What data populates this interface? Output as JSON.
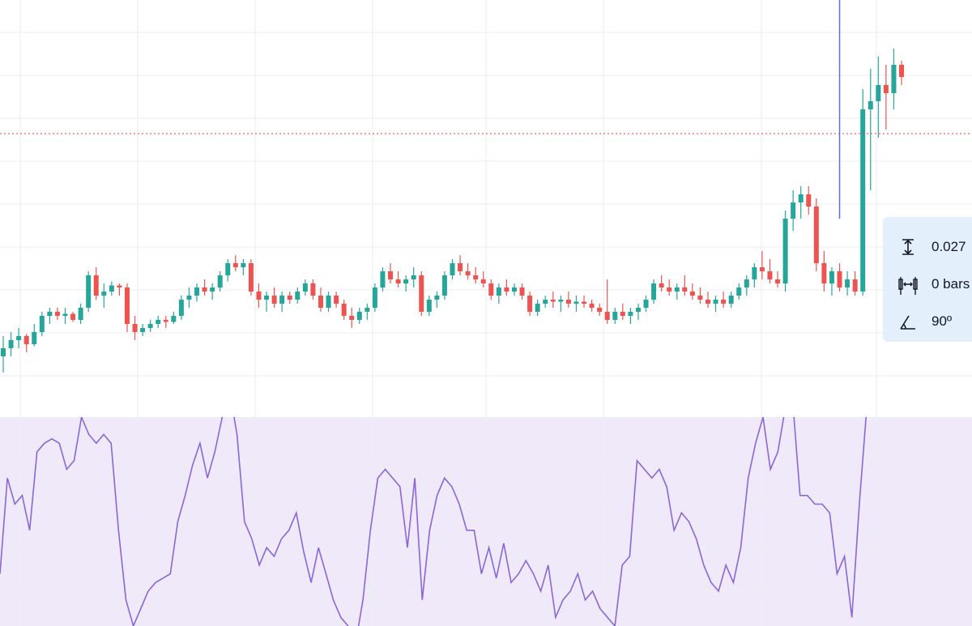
{
  "chart_data": [
    {
      "type": "candlestick",
      "title": "",
      "grid": true,
      "price_line": {
        "style": "dotted",
        "color": "#f23645"
      },
      "colors": {
        "up": "#26a69a",
        "down": "#ef5350",
        "background": "#ffffff",
        "grid": "#eceef2"
      },
      "candles": [
        [
          88,
          98,
          80,
          92
        ],
        [
          92,
          100,
          88,
          96
        ],
        [
          96,
          102,
          92,
          98
        ],
        [
          98,
          99,
          90,
          94
        ],
        [
          94,
          104,
          93,
          100
        ],
        [
          100,
          110,
          98,
          108
        ],
        [
          108,
          112,
          104,
          110
        ],
        [
          110,
          112,
          106,
          108
        ],
        [
          108,
          112,
          104,
          109
        ],
        [
          109,
          110,
          105,
          106
        ],
        [
          106,
          114,
          104,
          112
        ],
        [
          112,
          130,
          110,
          128
        ],
        [
          128,
          132,
          116,
          118
        ],
        [
          118,
          124,
          112,
          120
        ],
        [
          120,
          125,
          118,
          123
        ],
        [
          123,
          124,
          118,
          122
        ],
        [
          122,
          124,
          100,
          104
        ],
        [
          104,
          108,
          96,
          100
        ],
        [
          100,
          104,
          98,
          102
        ],
        [
          102,
          106,
          100,
          104
        ],
        [
          104,
          108,
          102,
          106
        ],
        [
          106,
          108,
          102,
          105
        ],
        [
          105,
          110,
          104,
          108
        ],
        [
          108,
          118,
          106,
          116
        ],
        [
          116,
          122,
          112,
          118
        ],
        [
          118,
          124,
          115,
          122
        ],
        [
          122,
          126,
          118,
          120
        ],
        [
          120,
          124,
          116,
          122
        ],
        [
          122,
          130,
          120,
          128
        ],
        [
          128,
          136,
          125,
          134
        ],
        [
          134,
          138,
          130,
          132
        ],
        [
          132,
          136,
          128,
          134
        ],
        [
          134,
          136,
          118,
          120
        ],
        [
          120,
          124,
          112,
          116
        ],
        [
          116,
          120,
          110,
          118
        ],
        [
          118,
          122,
          112,
          114
        ],
        [
          114,
          120,
          110,
          118
        ],
        [
          118,
          120,
          114,
          116
        ],
        [
          116,
          122,
          114,
          120
        ],
        [
          120,
          126,
          118,
          124
        ],
        [
          124,
          126,
          116,
          118
        ],
        [
          118,
          122,
          110,
          112
        ],
        [
          112,
          120,
          110,
          118
        ],
        [
          118,
          120,
          112,
          114
        ],
        [
          114,
          116,
          106,
          108
        ],
        [
          108,
          112,
          102,
          106
        ],
        [
          106,
          112,
          104,
          110
        ],
        [
          110,
          114,
          106,
          112
        ],
        [
          112,
          124,
          110,
          122
        ],
        [
          122,
          132,
          120,
          130
        ],
        [
          130,
          134,
          124,
          126
        ],
        [
          126,
          130,
          122,
          124
        ],
        [
          124,
          128,
          120,
          126
        ],
        [
          126,
          132,
          122,
          128
        ],
        [
          128,
          130,
          108,
          110
        ],
        [
          110,
          118,
          108,
          116
        ],
        [
          116,
          120,
          112,
          118
        ],
        [
          118,
          130,
          116,
          128
        ],
        [
          128,
          136,
          126,
          134
        ],
        [
          134,
          138,
          128,
          130
        ],
        [
          130,
          134,
          126,
          128
        ],
        [
          128,
          132,
          124,
          126
        ],
        [
          126,
          130,
          122,
          124
        ],
        [
          124,
          126,
          116,
          118
        ],
        [
          118,
          124,
          114,
          122
        ],
        [
          122,
          126,
          118,
          120
        ],
        [
          120,
          124,
          118,
          122
        ],
        [
          122,
          124,
          116,
          118
        ],
        [
          118,
          120,
          108,
          110
        ],
        [
          110,
          116,
          108,
          114
        ],
        [
          114,
          118,
          112,
          116
        ],
        [
          116,
          120,
          112,
          115
        ],
        [
          115,
          118,
          110,
          116
        ],
        [
          116,
          120,
          112,
          114
        ],
        [
          114,
          118,
          110,
          115
        ],
        [
          115,
          118,
          112,
          114
        ],
        [
          114,
          116,
          110,
          112
        ],
        [
          112,
          114,
          108,
          110
        ],
        [
          110,
          126,
          104,
          106
        ],
        [
          106,
          112,
          104,
          110
        ],
        [
          110,
          114,
          106,
          108
        ],
        [
          108,
          112,
          104,
          110
        ],
        [
          110,
          114,
          106,
          112
        ],
        [
          112,
          118,
          110,
          116
        ],
        [
          116,
          126,
          114,
          124
        ],
        [
          124,
          128,
          120,
          122
        ],
        [
          122,
          126,
          118,
          120
        ],
        [
          120,
          124,
          116,
          122
        ],
        [
          122,
          128,
          118,
          120
        ],
        [
          120,
          124,
          116,
          118
        ],
        [
          118,
          122,
          114,
          116
        ],
        [
          116,
          120,
          112,
          114
        ],
        [
          114,
          118,
          110,
          116
        ],
        [
          116,
          120,
          112,
          114
        ],
        [
          114,
          120,
          112,
          118
        ],
        [
          118,
          124,
          116,
          122
        ],
        [
          122,
          128,
          118,
          126
        ],
        [
          126,
          134,
          122,
          132
        ],
        [
          132,
          140,
          126,
          130
        ],
        [
          130,
          136,
          124,
          126
        ],
        [
          126,
          130,
          122,
          124
        ],
        [
          124,
          160,
          120,
          156
        ],
        [
          156,
          170,
          150,
          164
        ],
        [
          164,
          172,
          156,
          168
        ],
        [
          168,
          172,
          158,
          162
        ],
        [
          162,
          166,
          130,
          134
        ],
        [
          134,
          140,
          120,
          124
        ],
        [
          124,
          132,
          118,
          130
        ],
        [
          130,
          134,
          120,
          122
        ],
        [
          122,
          130,
          118,
          126
        ],
        [
          126,
          130,
          118,
          120
        ],
        [
          120,
          220,
          118,
          210
        ],
        [
          210,
          230,
          170,
          214
        ],
        [
          214,
          236,
          196,
          222
        ],
        [
          222,
          232,
          200,
          218
        ],
        [
          218,
          240,
          210,
          232
        ],
        [
          232,
          234,
          222,
          226
        ]
      ],
      "drawn_lines": [
        {
          "color": "#5b6cf0",
          "points": [
            [
              108,
              250
            ],
            [
              108,
              120
            ]
          ]
        },
        {
          "color": "#1e3fd8",
          "points": [
            [
              110,
              300
            ],
            [
              110,
              232
            ]
          ]
        }
      ]
    },
    {
      "type": "line",
      "series": [
        {
          "color": "#8a67d6",
          "values": [
            30,
            52,
            46,
            48,
            40,
            58,
            60,
            61,
            60,
            54,
            56,
            66,
            62,
            60,
            62,
            60,
            40,
            24,
            18,
            22,
            26,
            28,
            29,
            30,
            42,
            48,
            55,
            60,
            52,
            58,
            66,
            72,
            62,
            42,
            38,
            32,
            36,
            34,
            38,
            40,
            44,
            35,
            28,
            36,
            30,
            24,
            20,
            18,
            14,
            24,
            40,
            52,
            54,
            52,
            50,
            36,
            52,
            24,
            40,
            48,
            52,
            50,
            46,
            40,
            40,
            30,
            36,
            29,
            37,
            28,
            30,
            33,
            30,
            26,
            32,
            20,
            24,
            26,
            30,
            24,
            26,
            22,
            20,
            18,
            32,
            34,
            56,
            54,
            52,
            54,
            50,
            40,
            44,
            42,
            38,
            32,
            28,
            26,
            32,
            28,
            36,
            52,
            60,
            66,
            54,
            58,
            68,
            70,
            48,
            48,
            46,
            46,
            44,
            30,
            34,
            20,
            46,
            68
          ]
        }
      ],
      "colors": {
        "background": "#efe9f9"
      }
    }
  ],
  "tooltip": {
    "price_range": "0.027",
    "bar_range": "0 bars",
    "angle": "90º"
  }
}
